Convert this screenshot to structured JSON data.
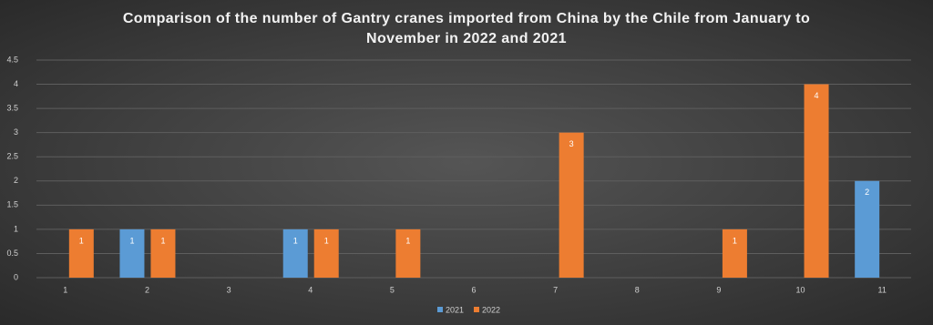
{
  "chart_data": {
    "type": "bar",
    "title": "Comparison of the number of Gantry cranes imported from China by the Chile from January to November in 2022 and 2021",
    "categories": [
      "1",
      "2",
      "3",
      "4",
      "5",
      "6",
      "7",
      "8",
      "9",
      "10",
      "11"
    ],
    "series": [
      {
        "name": "2021",
        "color": "#5b9bd5",
        "values": [
          null,
          1,
          null,
          1,
          null,
          null,
          null,
          null,
          null,
          null,
          2
        ]
      },
      {
        "name": "2022",
        "color": "#ed7d31",
        "values": [
          1,
          1,
          null,
          1,
          1,
          null,
          3,
          null,
          1,
          4,
          null
        ]
      }
    ],
    "ylim": [
      0,
      4.5
    ],
    "yticks": [
      0,
      0.5,
      1,
      1.5,
      2,
      2.5,
      3,
      3.5,
      4,
      4.5
    ],
    "grid": true,
    "legend": "bottom"
  }
}
